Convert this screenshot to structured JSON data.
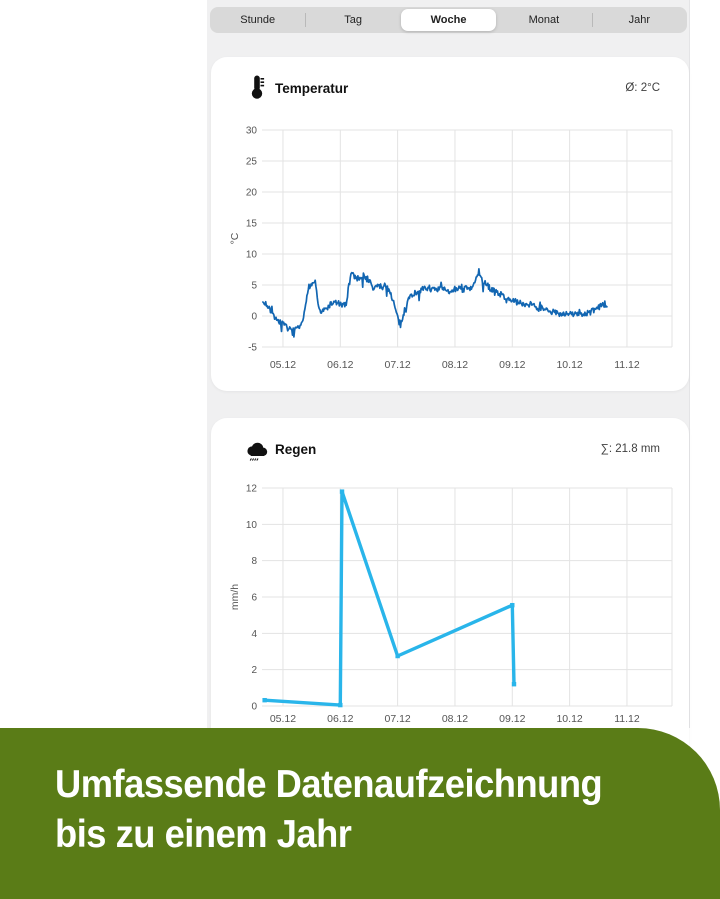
{
  "tabs": {
    "items": [
      {
        "label": "Stunde",
        "selected": false
      },
      {
        "label": "Tag",
        "selected": false
      },
      {
        "label": "Woche",
        "selected": true
      },
      {
        "label": "Monat",
        "selected": false
      },
      {
        "label": "Jahr",
        "selected": false
      }
    ]
  },
  "temperature_card": {
    "title": "Temperatur",
    "stat": "Ø: 2°C",
    "icon": "thermometer-icon"
  },
  "rain_card": {
    "title": "Regen",
    "stat": "∑: 21.8 mm",
    "icon": "rain-cloud-icon"
  },
  "banner": {
    "line1": "Umfassende Datenaufzeichnung",
    "line2": "bis zu einem Jahr",
    "bg_color": "#5a7c17",
    "text_color": "#ffffff"
  },
  "colors": {
    "temperature_line": "#1266b2",
    "rain_line": "#29b5ea",
    "grid": "#e3e3e3",
    "axis_text": "#555555",
    "app_background": "#f0f0f1",
    "segmented_background": "#d9d9d9"
  },
  "chart_data": [
    {
      "type": "line",
      "title": "Temperatur",
      "ylabel": "°C",
      "ylim": [
        -5,
        30
      ],
      "yticks": [
        30,
        25,
        20,
        15,
        10,
        5,
        0,
        -5
      ],
      "xlim": [
        4.634,
        11.786
      ],
      "xtick_values": [
        5,
        6,
        7,
        8,
        9,
        10,
        11
      ],
      "xtick_labels": [
        "05.12",
        "06.12",
        "07.12",
        "08.12",
        "09.12",
        "10.12",
        "11.12"
      ],
      "line_color": "#1266b2",
      "noisy": true,
      "legend": "none",
      "grid": true,
      "series": [
        {
          "name": "Temperatur",
          "points": [
            [
              4.65,
              1.9
            ],
            [
              4.7,
              2.1
            ],
            [
              4.74,
              1.3
            ],
            [
              4.78,
              0.9
            ],
            [
              4.82,
              0.4
            ],
            [
              4.87,
              -0.4
            ],
            [
              4.93,
              -0.9
            ],
            [
              5.0,
              -1.3
            ],
            [
              5.06,
              -1.8
            ],
            [
              5.12,
              -2.2
            ],
            [
              5.2,
              -2.4
            ],
            [
              5.27,
              -2.0
            ],
            [
              5.32,
              -1.6
            ],
            [
              5.36,
              -0.3
            ],
            [
              5.4,
              2.2
            ],
            [
              5.44,
              4.7
            ],
            [
              5.5,
              5.0
            ],
            [
              5.55,
              5.6
            ],
            [
              5.58,
              4.2
            ],
            [
              5.62,
              1.6
            ],
            [
              5.66,
              0.6
            ],
            [
              5.72,
              0.9
            ],
            [
              5.78,
              1.4
            ],
            [
              5.84,
              2.0
            ],
            [
              5.92,
              2.2
            ],
            [
              5.98,
              2.0
            ],
            [
              6.04,
              1.6
            ],
            [
              6.1,
              2.0
            ],
            [
              6.15,
              4.4
            ],
            [
              6.19,
              7.1
            ],
            [
              6.24,
              6.5
            ],
            [
              6.3,
              6.0
            ],
            [
              6.36,
              6.4
            ],
            [
              6.42,
              6.6
            ],
            [
              6.47,
              5.8
            ],
            [
              6.52,
              5.5
            ],
            [
              6.57,
              4.3
            ],
            [
              6.62,
              4.7
            ],
            [
              6.68,
              4.9
            ],
            [
              6.73,
              4.6
            ],
            [
              6.78,
              5.0
            ],
            [
              6.83,
              4.5
            ],
            [
              6.88,
              3.6
            ],
            [
              6.93,
              2.2
            ],
            [
              6.98,
              0.4
            ],
            [
              7.03,
              -1.2
            ],
            [
              7.08,
              -0.6
            ],
            [
              7.13,
              1.2
            ],
            [
              7.18,
              2.6
            ],
            [
              7.24,
              3.4
            ],
            [
              7.32,
              3.8
            ],
            [
              7.4,
              4.2
            ],
            [
              7.48,
              4.4
            ],
            [
              7.55,
              4.6
            ],
            [
              7.62,
              4.3
            ],
            [
              7.68,
              4.0
            ],
            [
              7.74,
              4.5
            ],
            [
              7.8,
              4.3
            ],
            [
              7.87,
              3.9
            ],
            [
              7.93,
              4.1
            ],
            [
              8.0,
              4.5
            ],
            [
              8.07,
              4.4
            ],
            [
              8.14,
              4.2
            ],
            [
              8.2,
              4.5
            ],
            [
              8.27,
              4.3
            ],
            [
              8.33,
              4.8
            ],
            [
              8.38,
              6.7
            ],
            [
              8.43,
              6.3
            ],
            [
              8.5,
              5.5
            ],
            [
              8.56,
              5.0
            ],
            [
              8.62,
              4.4
            ],
            [
              8.7,
              4.0
            ],
            [
              8.78,
              3.6
            ],
            [
              8.86,
              3.1
            ],
            [
              8.95,
              2.7
            ],
            [
              9.03,
              2.4
            ],
            [
              9.1,
              2.2
            ],
            [
              9.18,
              2.0
            ],
            [
              9.26,
              1.9
            ],
            [
              9.34,
              1.7
            ],
            [
              9.42,
              1.4
            ],
            [
              9.5,
              1.1
            ],
            [
              9.58,
              0.9
            ],
            [
              9.66,
              0.7
            ],
            [
              9.74,
              0.6
            ],
            [
              9.82,
              0.4
            ],
            [
              9.9,
              0.4
            ],
            [
              9.98,
              0.3
            ],
            [
              10.06,
              0.35
            ],
            [
              10.14,
              0.3
            ],
            [
              10.22,
              0.25
            ],
            [
              10.3,
              0.4
            ],
            [
              10.38,
              0.7
            ],
            [
              10.46,
              1.1
            ],
            [
              10.54,
              1.5
            ],
            [
              10.6,
              1.8
            ],
            [
              10.66,
              1.9
            ]
          ]
        }
      ]
    },
    {
      "type": "line",
      "title": "Regen",
      "ylabel": "mm/h",
      "ylim": [
        0,
        12
      ],
      "yticks": [
        12,
        10,
        8,
        6,
        4,
        2,
        0
      ],
      "xlim": [
        4.634,
        11.786
      ],
      "xtick_values": [
        5,
        6,
        7,
        8,
        9,
        10,
        11
      ],
      "xtick_labels": [
        "05.12",
        "06.12",
        "07.12",
        "08.12",
        "09.12",
        "10.12",
        "11.12"
      ],
      "line_color": "#29b5ea",
      "noisy": false,
      "legend": "none",
      "grid": true,
      "series": [
        {
          "name": "Regen",
          "points": [
            [
              4.68,
              0.32
            ],
            [
              6.0,
              0.05
            ],
            [
              6.03,
              11.8
            ],
            [
              7.0,
              2.75
            ],
            [
              9.0,
              5.55
            ],
            [
              9.03,
              1.2
            ]
          ]
        }
      ]
    }
  ]
}
